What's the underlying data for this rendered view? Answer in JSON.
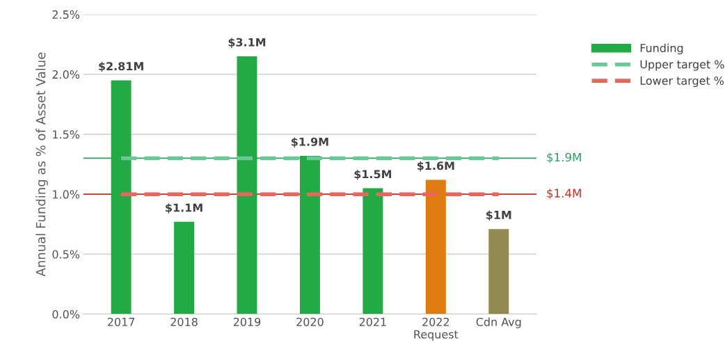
{
  "chart_data": {
    "type": "bar",
    "ylabel": "Annual Funding as % of Asset Value",
    "categories": [
      "2017",
      "2018",
      "2019",
      "2020",
      "2021",
      "2022\nRequest",
      "Cdn Avg"
    ],
    "series": [
      {
        "name": "Funding",
        "color": "#22aa44",
        "colors": [
          "#22aa44",
          "#22aa44",
          "#22aa44",
          "#22aa44",
          "#22aa44",
          "#e07b10",
          "#938a4f"
        ],
        "values": [
          1.95,
          0.77,
          2.15,
          1.32,
          1.05,
          1.12,
          0.71
        ]
      },
      {
        "name": "Upper target %",
        "type": "line",
        "color": "#6cc797",
        "line_style": "dashed",
        "values": [
          1.3,
          1.3,
          1.3,
          1.3,
          1.3,
          1.3,
          1.3
        ]
      },
      {
        "name": "Lower target %",
        "type": "line",
        "color": "#e8675c",
        "line_style": "dashed",
        "values": [
          1.0,
          1.0,
          1.0,
          1.0,
          1.0,
          1.0,
          1.0
        ]
      }
    ],
    "ref_lines": [
      {
        "axis": "y",
        "value": 1.3,
        "label": "$1.9M",
        "color": "#2e9e5e"
      },
      {
        "axis": "y",
        "value": 1.0,
        "label": "$1.4M",
        "color": "#c83228"
      }
    ],
    "annotations": [
      {
        "text": "$2.81M",
        "x": "2017",
        "y": 1.95
      },
      {
        "text": "$1.1M",
        "x": "2018",
        "y": 0.77
      },
      {
        "text": "$3.1M",
        "x": "2019",
        "y": 2.15
      },
      {
        "text": "$1.9M",
        "x": "2020",
        "y": 1.32
      },
      {
        "text": "$1.5M",
        "x": "2021",
        "y": 1.05
      },
      {
        "text": "$1.6M",
        "x": "2022\nRequest",
        "y": 1.12
      },
      {
        "text": "$1M",
        "x": "Cdn Avg",
        "y": 0.71
      }
    ],
    "ylim": [
      0,
      2.5
    ],
    "yticks": [
      {
        "value": 0,
        "label": "0.0%"
      },
      {
        "value": 0.5,
        "label": "0.5%"
      },
      {
        "value": 1.0,
        "label": "1.0%"
      },
      {
        "value": 1.5,
        "label": "1.5%"
      },
      {
        "value": 2.0,
        "label": "2.0%"
      },
      {
        "value": 2.5,
        "label": "2.5%"
      }
    ],
    "grid": "y",
    "legend": "right"
  }
}
